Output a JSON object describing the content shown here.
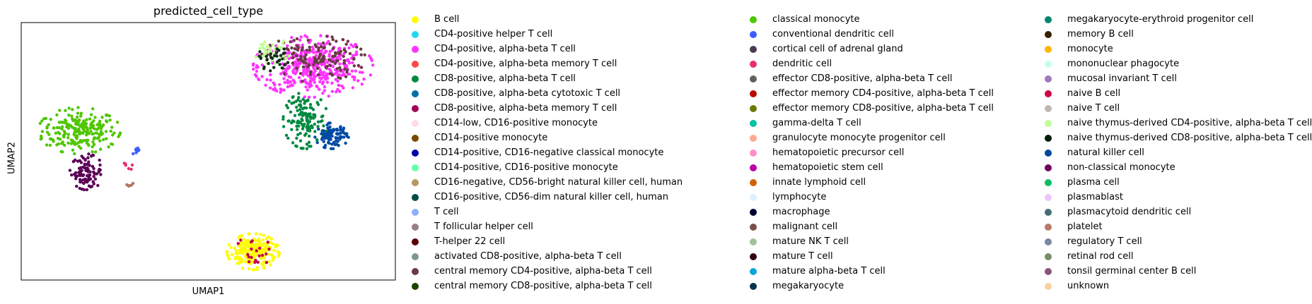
{
  "chart_data": {
    "type": "scatter",
    "title": "predicted_cell_type",
    "xlabel": "UMAP1",
    "ylabel": "UMAP2",
    "grid": false,
    "ticks": false,
    "legend_position": "right, 3 columns",
    "clusters": [
      {
        "label": "classical monocyte",
        "color": "#4fc601",
        "cx": 0.155,
        "cy": 0.58,
        "rx": 0.11,
        "ry": 0.09,
        "n": 230
      },
      {
        "label": "non-classical monocyte",
        "color": "#5a0056",
        "cx": 0.175,
        "cy": 0.42,
        "rx": 0.045,
        "ry": 0.07,
        "n": 90
      },
      {
        "label": "conventional dendritic cell",
        "color": "#3b5dff",
        "cx": 0.31,
        "cy": 0.5,
        "rx": 0.015,
        "ry": 0.014,
        "n": 12
      },
      {
        "label": "CD4-positive, alpha-beta T cell",
        "color": "#ff34ff",
        "cx": 0.78,
        "cy": 0.83,
        "rx": 0.16,
        "ry": 0.12,
        "n": 420
      },
      {
        "label": "central memory CD4-positive, alpha-beta T cell",
        "color": "#6b3a44",
        "cx": 0.78,
        "cy": 0.86,
        "rx": 0.14,
        "ry": 0.09,
        "n": 140
      },
      {
        "label": "naive thymus-derived CD4-positive, alpha-beta T cell",
        "color": "#c0ff93",
        "cx": 0.67,
        "cy": 0.89,
        "rx": 0.05,
        "ry": 0.05,
        "n": 40
      },
      {
        "label": "naive thymus-derived CD8-positive, alpha-beta T cell",
        "color": "#0d2f1a",
        "cx": 0.68,
        "cy": 0.86,
        "rx": 0.05,
        "ry": 0.05,
        "n": 30
      },
      {
        "label": "CD8-positive, alpha-beta T cell",
        "color": "#008941",
        "cx": 0.76,
        "cy": 0.62,
        "rx": 0.06,
        "ry": 0.11,
        "n": 140
      },
      {
        "label": "natural killer cell",
        "color": "#0049a5",
        "cx": 0.83,
        "cy": 0.56,
        "rx": 0.045,
        "ry": 0.05,
        "n": 90
      },
      {
        "label": "B cell",
        "color": "#fdfc00",
        "cx": 0.62,
        "cy": 0.11,
        "rx": 0.07,
        "ry": 0.07,
        "n": 230
      },
      {
        "label": "naive B cell",
        "color": "#c8004d",
        "cx": 0.62,
        "cy": 0.11,
        "rx": 0.05,
        "ry": 0.06,
        "n": 20
      },
      {
        "label": "platelet",
        "color": "#b07766",
        "cx": 0.29,
        "cy": 0.37,
        "rx": 0.01,
        "ry": 0.01,
        "n": 6
      },
      {
        "label": "dendritic cell",
        "color": "#e8306e",
        "cx": 0.29,
        "cy": 0.45,
        "rx": 0.02,
        "ry": 0.04,
        "n": 6
      }
    ],
    "legend_columns": [
      [
        {
          "label": "B cell",
          "color": "#fdfc00"
        },
        {
          "label": "CD4-positive helper T cell",
          "color": "#22d7f0"
        },
        {
          "label": "CD4-positive, alpha-beta T cell",
          "color": "#ff34ff"
        },
        {
          "label": "CD4-positive, alpha-beta memory T cell",
          "color": "#ff4a46"
        },
        {
          "label": "CD8-positive, alpha-beta T cell",
          "color": "#008941"
        },
        {
          "label": "CD8-positive, alpha-beta cytotoxic T cell",
          "color": "#006fa6"
        },
        {
          "label": "CD8-positive, alpha-beta memory T cell",
          "color": "#a30059"
        },
        {
          "label": "CD14-low, CD16-positive monocyte",
          "color": "#ffdbe5"
        },
        {
          "label": "CD14-positive monocyte",
          "color": "#7a4900"
        },
        {
          "label": "CD14-positive, CD16-negative classical monocyte",
          "color": "#0000a6"
        },
        {
          "label": "CD14-positive, CD16-positive monocyte",
          "color": "#63ffac"
        },
        {
          "label": "CD16-negative, CD56-bright natural killer cell, human",
          "color": "#b79762"
        },
        {
          "label": "CD16-positive, CD56-dim natural killer cell, human",
          "color": "#004d43"
        },
        {
          "label": "T cell",
          "color": "#8fb0ff"
        },
        {
          "label": "T follicular helper cell",
          "color": "#997d87"
        },
        {
          "label": "T-helper 22 cell",
          "color": "#5a0007"
        },
        {
          "label": "activated CD8-positive, alpha-beta T cell",
          "color": "#809693"
        },
        {
          "label": "central memory CD4-positive, alpha-beta T cell",
          "color": "#6b3a44"
        },
        {
          "label": "central memory CD8-positive, alpha-beta T cell",
          "color": "#1b4400"
        }
      ],
      [
        {
          "label": "classical monocyte",
          "color": "#4fc601"
        },
        {
          "label": "conventional dendritic cell",
          "color": "#3b5dff"
        },
        {
          "label": "cortical cell of adrenal gland",
          "color": "#4a3b53"
        },
        {
          "label": "dendritic cell",
          "color": "#e8306e"
        },
        {
          "label": "effector CD8-positive, alpha-beta T cell",
          "color": "#61615a"
        },
        {
          "label": "effector memory CD4-positive, alpha-beta T cell",
          "color": "#ba0900"
        },
        {
          "label": "effector memory CD8-positive, alpha-beta T cell",
          "color": "#6b7900"
        },
        {
          "label": "gamma-delta T cell",
          "color": "#00c2a0"
        },
        {
          "label": "granulocyte monocyte progenitor cell",
          "color": "#ffaa92"
        },
        {
          "label": "hematopoietic precursor cell",
          "color": "#ff90c9"
        },
        {
          "label": "hematopoietic stem cell",
          "color": "#b903aa"
        },
        {
          "label": "innate lymphoid cell",
          "color": "#d16100"
        },
        {
          "label": "lymphocyte",
          "color": "#ddefff"
        },
        {
          "label": "macrophage",
          "color": "#000035"
        },
        {
          "label": "malignant cell",
          "color": "#7b4f4b"
        },
        {
          "label": "mature NK T cell",
          "color": "#a1c299"
        },
        {
          "label": "mature T cell",
          "color": "#300018"
        },
        {
          "label": "mature alpha-beta T cell",
          "color": "#0aa6d8"
        },
        {
          "label": "megakaryocyte",
          "color": "#013349"
        }
      ],
      [
        {
          "label": "megakaryocyte-erythroid progenitor cell",
          "color": "#00846f"
        },
        {
          "label": "memory B cell",
          "color": "#372101"
        },
        {
          "label": "monocyte",
          "color": "#ffb500"
        },
        {
          "label": "mononuclear phagocyte",
          "color": "#c2ffed"
        },
        {
          "label": "mucosal invariant T cell",
          "color": "#a079bf"
        },
        {
          "label": "naive B cell",
          "color": "#cc0744"
        },
        {
          "label": "naive T cell",
          "color": "#c0b9b2"
        },
        {
          "label": "naive thymus-derived CD4-positive, alpha-beta T cell",
          "color": "#c2ff99"
        },
        {
          "label": "naive thymus-derived CD8-positive, alpha-beta T cell",
          "color": "#001e09"
        },
        {
          "label": "natural killer cell",
          "color": "#00489c"
        },
        {
          "label": "non-classical monocyte",
          "color": "#6f0062"
        },
        {
          "label": "plasma cell",
          "color": "#0cbd66"
        },
        {
          "label": "plasmablast",
          "color": "#eec3ff"
        },
        {
          "label": "plasmacytoid dendritic cell",
          "color": "#456d75"
        },
        {
          "label": "platelet",
          "color": "#b77b68"
        },
        {
          "label": "regulatory T cell",
          "color": "#7a87a1"
        },
        {
          "label": "retinal rod cell",
          "color": "#788d66"
        },
        {
          "label": "tonsil germinal center B cell",
          "color": "#885578"
        },
        {
          "label": "unknown",
          "color": "#fad09f"
        }
      ]
    ]
  }
}
